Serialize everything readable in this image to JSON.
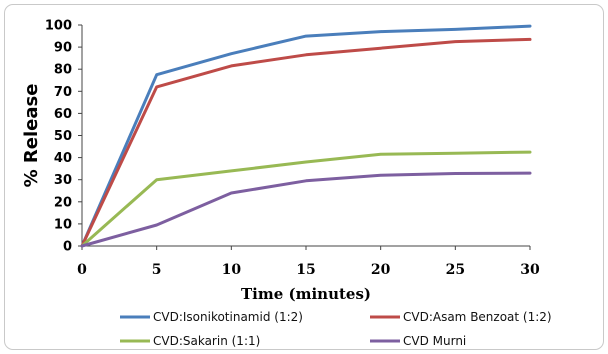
{
  "chart_data": {
    "type": "line",
    "xlabel": "Time  (minutes)",
    "ylabel": "% Release",
    "x": [
      0,
      5,
      10,
      15,
      20,
      25,
      30
    ],
    "x_ticks": [
      "0",
      "5",
      "10",
      "15",
      "20",
      "25",
      "30"
    ],
    "y_ticks": [
      "0",
      "10",
      "20",
      "30",
      "40",
      "50",
      "60",
      "70",
      "80",
      "90",
      "100"
    ],
    "xlim": [
      0,
      30
    ],
    "ylim": [
      0,
      100
    ],
    "grid": false,
    "legend_position": "bottom",
    "series": [
      {
        "name": "CVD:Isonikotinamid (1:2)",
        "color": "#4a7ebb",
        "values": [
          0,
          77.5,
          87,
          95,
          97,
          98,
          99.5
        ]
      },
      {
        "name": "CVD:Asam Benzoat (1:2)",
        "color": "#be4b48",
        "values": [
          0,
          72,
          81.5,
          86.5,
          89.5,
          92.5,
          93.5
        ]
      },
      {
        "name": "CVD:Sakarin (1:1)",
        "color": "#98b954",
        "values": [
          0,
          30,
          34,
          38,
          41.5,
          42,
          42.5
        ]
      },
      {
        "name": "CVD Murni",
        "color": "#7d5fa0",
        "values": [
          0,
          9.5,
          24,
          29.5,
          32,
          32.8,
          33
        ]
      }
    ]
  }
}
